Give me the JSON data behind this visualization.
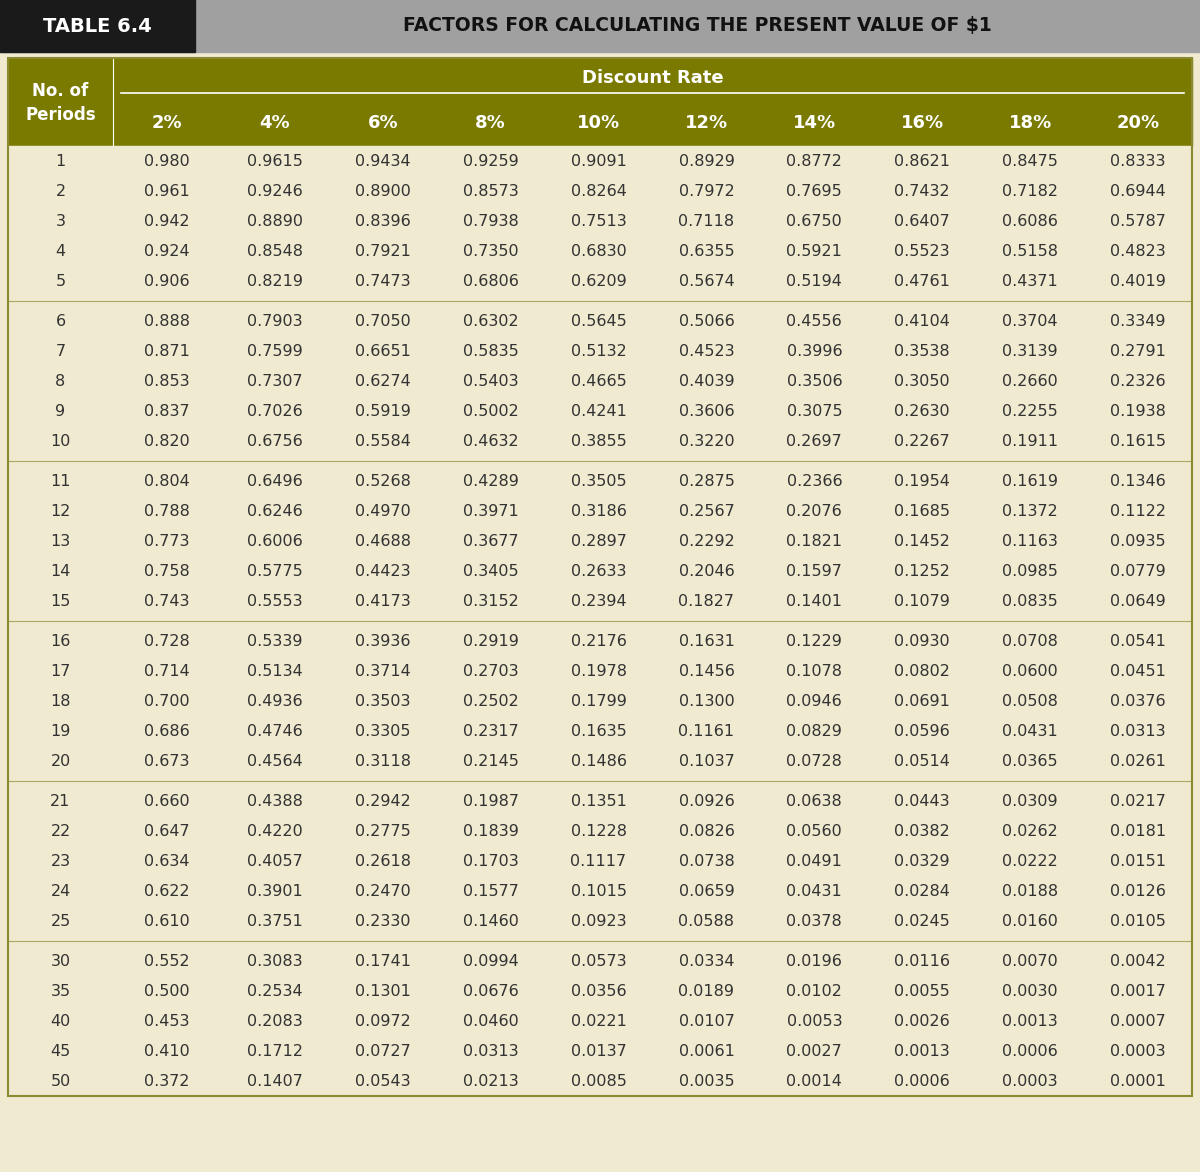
{
  "title_left": "TABLE 6.4",
  "title_right": "FACTORS FOR CALCULATING THE PRESENT VALUE OF $1",
  "header_group": "Discount Rate",
  "col_headers": [
    "2%",
    "4%",
    "6%",
    "8%",
    "10%",
    "12%",
    "14%",
    "16%",
    "18%",
    "20%"
  ],
  "row_display": [
    "1",
    "2",
    "3",
    "4",
    "5",
    "6",
    "7",
    "8",
    "9",
    "10",
    "11",
    "12",
    "13",
    "14",
    "15",
    "16",
    "17",
    "18",
    "19",
    "20",
    "21",
    "22",
    "23",
    "24",
    "25",
    "30",
    "35",
    "40",
    "45",
    "50"
  ],
  "col1_fmt": [
    "0.980",
    "0.961",
    "0.942",
    "0.924",
    "0.906",
    "0.888",
    "0.871",
    "0.853",
    "0.837",
    "0.820",
    "0.804",
    "0.788",
    "0.773",
    "0.758",
    "0.743",
    "0.728",
    "0.714",
    "0.700",
    "0.686",
    "0.673",
    "0.660",
    "0.647",
    "0.634",
    "0.622",
    "0.610",
    "0.552",
    "0.500",
    "0.453",
    "0.410",
    "0.372"
  ],
  "table_data": [
    [
      "0.9615",
      "0.9434",
      "0.9259",
      "0.9091",
      "0.8929",
      "0.8772",
      "0.8621",
      "0.8475",
      "0.8333"
    ],
    [
      "0.9246",
      "0.8900",
      "0.8573",
      "0.8264",
      "0.7972",
      "0.7695",
      "0.7432",
      "0.7182",
      "0.6944"
    ],
    [
      "0.8890",
      "0.8396",
      "0.7938",
      "0.7513",
      "0.7118",
      "0.6750",
      "0.6407",
      "0.6086",
      "0.5787"
    ],
    [
      "0.8548",
      "0.7921",
      "0.7350",
      "0.6830",
      "0.6355",
      "0.5921",
      "0.5523",
      "0.5158",
      "0.4823"
    ],
    [
      "0.8219",
      "0.7473",
      "0.6806",
      "0.6209",
      "0.5674",
      "0.5194",
      "0.4761",
      "0.4371",
      "0.4019"
    ],
    [
      "0.7903",
      "0.7050",
      "0.6302",
      "0.5645",
      "0.5066",
      "0.4556",
      "0.4104",
      "0.3704",
      "0.3349"
    ],
    [
      "0.7599",
      "0.6651",
      "0.5835",
      "0.5132",
      "0.4523",
      "0.3996",
      "0.3538",
      "0.3139",
      "0.2791"
    ],
    [
      "0.7307",
      "0.6274",
      "0.5403",
      "0.4665",
      "0.4039",
      "0.3506",
      "0.3050",
      "0.2660",
      "0.2326"
    ],
    [
      "0.7026",
      "0.5919",
      "0.5002",
      "0.4241",
      "0.3606",
      "0.3075",
      "0.2630",
      "0.2255",
      "0.1938"
    ],
    [
      "0.6756",
      "0.5584",
      "0.4632",
      "0.3855",
      "0.3220",
      "0.2697",
      "0.2267",
      "0.1911",
      "0.1615"
    ],
    [
      "0.6496",
      "0.5268",
      "0.4289",
      "0.3505",
      "0.2875",
      "0.2366",
      "0.1954",
      "0.1619",
      "0.1346"
    ],
    [
      "0.6246",
      "0.4970",
      "0.3971",
      "0.3186",
      "0.2567",
      "0.2076",
      "0.1685",
      "0.1372",
      "0.1122"
    ],
    [
      "0.6006",
      "0.4688",
      "0.3677",
      "0.2897",
      "0.2292",
      "0.1821",
      "0.1452",
      "0.1163",
      "0.0935"
    ],
    [
      "0.5775",
      "0.4423",
      "0.3405",
      "0.2633",
      "0.2046",
      "0.1597",
      "0.1252",
      "0.0985",
      "0.0779"
    ],
    [
      "0.5553",
      "0.4173",
      "0.3152",
      "0.2394",
      "0.1827",
      "0.1401",
      "0.1079",
      "0.0835",
      "0.0649"
    ],
    [
      "0.5339",
      "0.3936",
      "0.2919",
      "0.2176",
      "0.1631",
      "0.1229",
      "0.0930",
      "0.0708",
      "0.0541"
    ],
    [
      "0.5134",
      "0.3714",
      "0.2703",
      "0.1978",
      "0.1456",
      "0.1078",
      "0.0802",
      "0.0600",
      "0.0451"
    ],
    [
      "0.4936",
      "0.3503",
      "0.2502",
      "0.1799",
      "0.1300",
      "0.0946",
      "0.0691",
      "0.0508",
      "0.0376"
    ],
    [
      "0.4746",
      "0.3305",
      "0.2317",
      "0.1635",
      "0.1161",
      "0.0829",
      "0.0596",
      "0.0431",
      "0.0313"
    ],
    [
      "0.4564",
      "0.3118",
      "0.2145",
      "0.1486",
      "0.1037",
      "0.0728",
      "0.0514",
      "0.0365",
      "0.0261"
    ],
    [
      "0.4388",
      "0.2942",
      "0.1987",
      "0.1351",
      "0.0926",
      "0.0638",
      "0.0443",
      "0.0309",
      "0.0217"
    ],
    [
      "0.4220",
      "0.2775",
      "0.1839",
      "0.1228",
      "0.0826",
      "0.0560",
      "0.0382",
      "0.0262",
      "0.0181"
    ],
    [
      "0.4057",
      "0.2618",
      "0.1703",
      "0.1117",
      "0.0738",
      "0.0491",
      "0.0329",
      "0.0222",
      "0.0151"
    ],
    [
      "0.3901",
      "0.2470",
      "0.1577",
      "0.1015",
      "0.0659",
      "0.0431",
      "0.0284",
      "0.0188",
      "0.0126"
    ],
    [
      "0.3751",
      "0.2330",
      "0.1460",
      "0.0923",
      "0.0588",
      "0.0378",
      "0.0245",
      "0.0160",
      "0.0105"
    ],
    [
      "0.3083",
      "0.1741",
      "0.0994",
      "0.0573",
      "0.0334",
      "0.0196",
      "0.0116",
      "0.0070",
      "0.0042"
    ],
    [
      "0.2534",
      "0.1301",
      "0.0676",
      "0.0356",
      "0.0189",
      "0.0102",
      "0.0055",
      "0.0030",
      "0.0017"
    ],
    [
      "0.2083",
      "0.0972",
      "0.0460",
      "0.0221",
      "0.0107",
      "0.0053",
      "0.0026",
      "0.0013",
      "0.0007"
    ],
    [
      "0.1712",
      "0.0727",
      "0.0313",
      "0.0137",
      "0.0061",
      "0.0027",
      "0.0013",
      "0.0006",
      "0.0003"
    ],
    [
      "0.1407",
      "0.0543",
      "0.0213",
      "0.0085",
      "0.0035",
      "0.0014",
      "0.0006",
      "0.0003",
      "0.0001"
    ]
  ],
  "group_break_after": [
    4,
    9,
    14,
    19,
    24
  ],
  "color_title_bar_bg": "#a0a0a0",
  "color_title_black_bg": "#1a1a1a",
  "color_title_black_fg": "#ffffff",
  "color_title_gray_fg": "#111111",
  "color_olive_bg": "#7a7a00",
  "color_olive_fg": "#ffffff",
  "color_body_bg": "#f0ead0",
  "color_body_fg": "#333333",
  "color_sep_line": "#8a8a30",
  "color_outer_border": "#8a8a30"
}
